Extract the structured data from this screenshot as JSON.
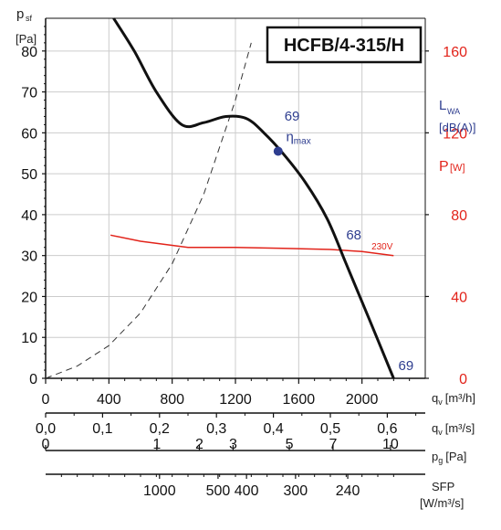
{
  "chart_data": {
    "type": "line",
    "title": "HCFB/4-315/H",
    "y_left": {
      "label": "p",
      "label_sub": "sf",
      "unit": "[Pa]",
      "range": [
        0,
        88
      ],
      "ticks": [
        "0",
        "10",
        "20",
        "30",
        "40",
        "50",
        "60",
        "70",
        "80"
      ]
    },
    "y_right_lwa": {
      "label": "L",
      "label_sub": "WA",
      "unit": "[dB(A)]"
    },
    "y_right_power": {
      "label": "P",
      "unit": "[W]",
      "ticks": [
        "0",
        "40",
        "80",
        "120",
        "160"
      ],
      "range": [
        0,
        176
      ]
    },
    "x_axes": [
      {
        "label": "q",
        "label_sub": "v",
        "unit": "[m³/h]",
        "ticks": [
          "0",
          "400",
          "800",
          "1200",
          "1600",
          "2000"
        ]
      },
      {
        "label": "q",
        "label_sub": "v",
        "unit": "[m³/s]",
        "ticks": [
          "0,0",
          "0,1",
          "0,2",
          "0,3",
          "0,4",
          "0,5",
          "0,6"
        ]
      },
      {
        "label": "p",
        "label_sub": "g",
        "unit": "[Pa]",
        "ticks": [
          "0",
          "1",
          "2",
          "3",
          "5",
          "7",
          "10"
        ]
      },
      {
        "label": "SFP",
        "unit": "[W/m³/s]",
        "ticks": [
          "1000",
          "500",
          "400",
          "300",
          "240"
        ]
      }
    ],
    "xlim": [
      0,
      2400
    ],
    "series": [
      {
        "values_x": [
          430,
          560,
          700,
          860,
          1000,
          1140,
          1270,
          1380,
          1500,
          1640,
          1780,
          1900,
          2040,
          2200
        ],
        "values_y": [
          88,
          80,
          70,
          62,
          62.5,
          64,
          63.5,
          60,
          55,
          48,
          39,
          28,
          15,
          0
        ]
      },
      {
        "values_x": [
          410,
          600,
          900,
          1200,
          1500,
          1800,
          2000,
          2200
        ],
        "values_y": [
          70,
          67,
          64,
          64,
          63.5,
          63,
          62,
          60
        ]
      },
      {
        "values_x": [
          0,
          200,
          400,
          600,
          800,
          1000,
          1200,
          1300,
          1400
        ],
        "values_y": [
          0,
          3,
          8,
          16,
          28,
          45,
          68,
          82,
          95
        ]
      }
    ],
    "annotations": [
      {
        "text": "69",
        "x": 1510,
        "y": 63
      },
      {
        "text": "η",
        "sub": "max",
        "x": 1520,
        "y": 58
      },
      {
        "text": "68",
        "x": 1900,
        "y": 34
      },
      {
        "text": "230V",
        "x": 2060,
        "y": 31.5
      },
      {
        "text": "69",
        "x": 2230,
        "y": 2
      }
    ],
    "point": {
      "x": 1470,
      "y": 55.5
    },
    "colors": {
      "curve": "#111111",
      "power": "#e2231a",
      "blue": "#2e3d8f",
      "grid": "#cccccc"
    }
  }
}
